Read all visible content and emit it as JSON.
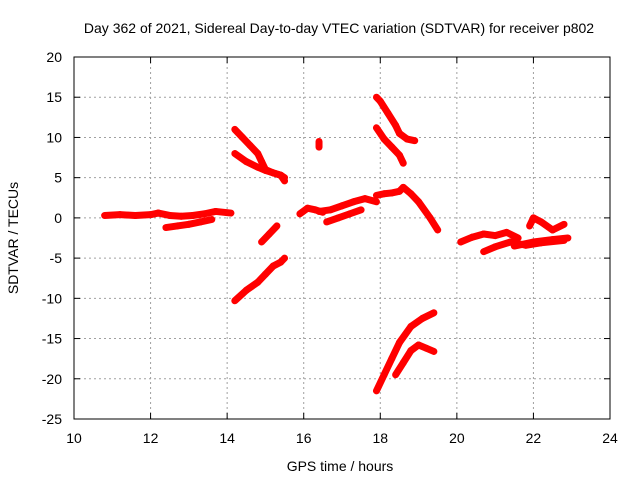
{
  "chart_data": {
    "type": "scatter",
    "title": "Day 362 of 2021, Sidereal Day-to-day VTEC variation (SDTVAR) for receiver p802",
    "xlabel": "GPS time / hours",
    "ylabel": "SDTVAR / TECUs",
    "xlim": [
      10,
      24
    ],
    "ylim": [
      -25,
      20
    ],
    "xticks": [
      10,
      12,
      14,
      16,
      18,
      20,
      22,
      24
    ],
    "yticks": [
      -25,
      -20,
      -15,
      -10,
      -5,
      0,
      5,
      10,
      15,
      20
    ],
    "grid": true,
    "marker": "plus",
    "color": "#ff0000",
    "series": [
      {
        "x": [
          10.8,
          11.2,
          11.6,
          12.0,
          12.2,
          12.5,
          12.8,
          13.1,
          13.4,
          13.7,
          14.1
        ],
        "y": [
          0.3,
          0.4,
          0.3,
          0.4,
          0.6,
          0.3,
          0.2,
          0.3,
          0.5,
          0.8,
          0.6
        ]
      },
      {
        "x": [
          12.4,
          12.7,
          13.0,
          13.3,
          13.6
        ],
        "y": [
          -1.2,
          -1.0,
          -0.8,
          -0.5,
          -0.2
        ]
      },
      {
        "x": [
          14.2,
          14.4,
          14.6,
          14.8,
          14.9,
          15.0,
          15.2,
          15.4,
          15.5
        ],
        "y": [
          11.0,
          10.0,
          9.0,
          8.0,
          7.0,
          6.0,
          5.6,
          5.3,
          4.6
        ]
      },
      {
        "x": [
          14.2,
          14.5,
          14.8,
          15.0,
          15.2,
          15.4,
          15.5
        ],
        "y": [
          8.0,
          7.0,
          6.3,
          5.9,
          5.6,
          5.3,
          5.0
        ]
      },
      {
        "x": [
          14.2,
          14.5,
          14.8,
          15.0,
          15.2,
          15.4,
          15.5
        ],
        "y": [
          -10.3,
          -9.0,
          -8.0,
          -7.0,
          -6.0,
          -5.5,
          -5.0
        ]
      },
      {
        "x": [
          14.9,
          15.1,
          15.3
        ],
        "y": [
          -3.0,
          -2.0,
          -1.0
        ]
      },
      {
        "x": [
          15.9,
          16.1,
          16.3,
          16.5
        ],
        "y": [
          0.5,
          1.2,
          1.0,
          0.7
        ]
      },
      {
        "x": [
          16.4,
          16.4
        ],
        "y": [
          9.5,
          8.8
        ]
      },
      {
        "x": [
          16.4,
          16.7,
          17.0,
          17.3,
          17.6,
          17.9
        ],
        "y": [
          0.8,
          1.0,
          1.5,
          2.0,
          2.4,
          2.0
        ]
      },
      {
        "x": [
          16.6,
          16.9,
          17.2,
          17.5
        ],
        "y": [
          -0.5,
          0.0,
          0.5,
          1.0
        ]
      },
      {
        "x": [
          17.9,
          18.1,
          18.3,
          18.5,
          18.6,
          18.8,
          19.0,
          19.3,
          19.5
        ],
        "y": [
          2.8,
          3.0,
          3.1,
          3.3,
          3.8,
          3.0,
          2.0,
          0.0,
          -1.5
        ]
      },
      {
        "x": [
          17.9,
          18.0,
          18.2,
          18.4,
          18.5,
          18.7,
          18.9
        ],
        "y": [
          15.0,
          14.5,
          13.0,
          11.5,
          10.5,
          9.8,
          9.6
        ]
      },
      {
        "x": [
          17.9,
          18.1,
          18.3,
          18.5,
          18.6
        ],
        "y": [
          11.2,
          9.8,
          8.8,
          7.8,
          6.8
        ]
      },
      {
        "x": [
          17.9,
          18.1,
          18.3,
          18.5,
          18.8,
          19.1,
          19.4
        ],
        "y": [
          -21.5,
          -19.5,
          -17.5,
          -15.5,
          -13.5,
          -12.5,
          -11.8
        ]
      },
      {
        "x": [
          18.4,
          18.6,
          18.8,
          19.0,
          19.2,
          19.4
        ],
        "y": [
          -19.5,
          -18.0,
          -16.5,
          -15.8,
          -16.2,
          -16.6
        ]
      },
      {
        "x": [
          20.1,
          20.4,
          20.7,
          21.0,
          21.3,
          21.6
        ],
        "y": [
          -3.0,
          -2.4,
          -2.0,
          -2.2,
          -1.8,
          -2.5
        ]
      },
      {
        "x": [
          20.7,
          21.0,
          21.4,
          21.8,
          22.2,
          22.8
        ],
        "y": [
          -4.2,
          -3.6,
          -3.0,
          -3.4,
          -3.1,
          -2.8
        ]
      },
      {
        "x": [
          21.9,
          22.0,
          22.2,
          22.5,
          22.8
        ],
        "y": [
          -1.0,
          0.0,
          -0.5,
          -1.5,
          -0.8
        ]
      },
      {
        "x": [
          21.5,
          22.0,
          22.5,
          22.9
        ],
        "y": [
          -3.5,
          -3.0,
          -2.7,
          -2.5
        ]
      }
    ]
  }
}
